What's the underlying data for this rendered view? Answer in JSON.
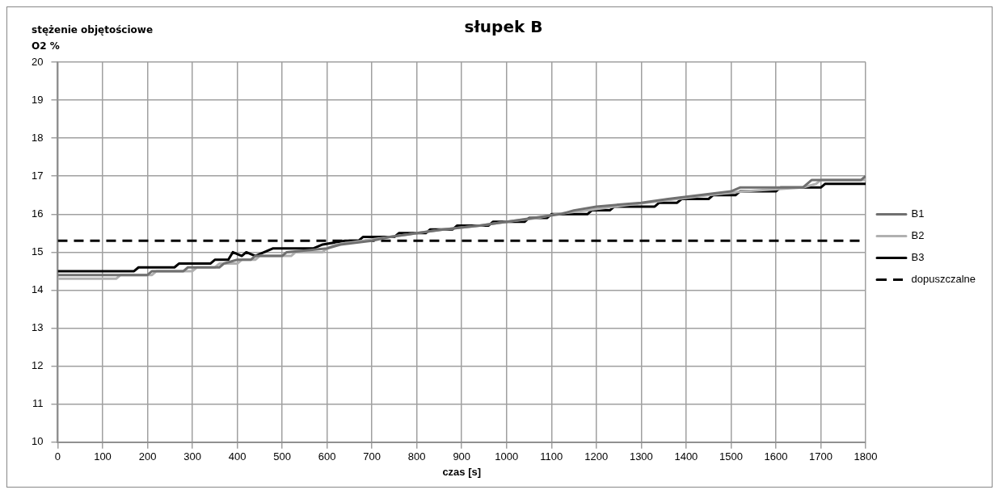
{
  "chart_data": {
    "type": "line",
    "title": "słupek B",
    "ylabel": "stężenie objętościowe O2 %",
    "xlabel": "czas [s]",
    "xlim": [
      0,
      1800
    ],
    "xticks": [
      0,
      100,
      200,
      300,
      400,
      500,
      600,
      700,
      800,
      900,
      1000,
      1100,
      1200,
      1300,
      1400,
      1500,
      1600,
      1700,
      1800
    ],
    "ylim": [
      10,
      20
    ],
    "yticks": [
      10,
      11,
      12,
      13,
      14,
      15,
      16,
      17,
      18,
      19,
      20
    ],
    "grid": true,
    "legend": "right",
    "marker": "none",
    "series": [
      {
        "name": "B1",
        "color": "#707070",
        "x": [
          0,
          200,
          210,
          280,
          290,
          360,
          370,
          400,
          430,
          440,
          500,
          510,
          600,
          630,
          700,
          740,
          800,
          860,
          940,
          1000,
          1060,
          1120,
          1150,
          1200,
          1300,
          1360,
          1430,
          1500,
          1520,
          1660,
          1680,
          1790,
          1800
        ],
        "values": [
          14.4,
          14.4,
          14.5,
          14.5,
          14.6,
          14.6,
          14.7,
          14.8,
          14.8,
          14.9,
          14.9,
          15.0,
          15.1,
          15.2,
          15.3,
          15.4,
          15.5,
          15.6,
          15.7,
          15.8,
          15.9,
          16.0,
          16.1,
          16.2,
          16.3,
          16.4,
          16.5,
          16.6,
          16.7,
          16.7,
          16.9,
          16.9,
          17.0
        ]
      },
      {
        "name": "B2",
        "color": "#b0b0b0",
        "x": [
          0,
          130,
          140,
          210,
          220,
          300,
          310,
          350,
          360,
          400,
          410,
          440,
          450,
          520,
          530,
          590,
          600,
          620,
          680,
          740,
          800,
          860,
          940,
          1000,
          1070,
          1110,
          1180,
          1240,
          1310,
          1380,
          1450,
          1530,
          1660,
          1690,
          1700,
          1800
        ],
        "values": [
          14.3,
          14.3,
          14.4,
          14.4,
          14.5,
          14.5,
          14.6,
          14.6,
          14.7,
          14.7,
          14.8,
          14.8,
          14.9,
          14.9,
          15.0,
          15.0,
          15.1,
          15.2,
          15.3,
          15.4,
          15.5,
          15.6,
          15.7,
          15.8,
          15.9,
          16.0,
          16.1,
          16.2,
          16.3,
          16.4,
          16.5,
          16.6,
          16.7,
          16.8,
          16.9,
          16.9
        ]
      },
      {
        "name": "B3",
        "color": "#000000",
        "x": [
          0,
          170,
          180,
          260,
          270,
          340,
          350,
          380,
          390,
          410,
          420,
          440,
          460,
          480,
          570,
          590,
          640,
          670,
          680,
          750,
          760,
          820,
          830,
          880,
          890,
          960,
          970,
          1040,
          1050,
          1090,
          1100,
          1180,
          1190,
          1230,
          1240,
          1330,
          1340,
          1380,
          1390,
          1450,
          1460,
          1510,
          1520,
          1600,
          1610,
          1700,
          1710,
          1800
        ],
        "values": [
          14.5,
          14.5,
          14.6,
          14.6,
          14.7,
          14.7,
          14.8,
          14.8,
          15.0,
          14.9,
          15.0,
          14.9,
          15.0,
          15.1,
          15.1,
          15.2,
          15.3,
          15.3,
          15.4,
          15.4,
          15.5,
          15.5,
          15.6,
          15.6,
          15.7,
          15.7,
          15.8,
          15.8,
          15.9,
          15.9,
          16.0,
          16.0,
          16.1,
          16.1,
          16.2,
          16.2,
          16.3,
          16.3,
          16.4,
          16.4,
          16.5,
          16.5,
          16.6,
          16.6,
          16.7,
          16.7,
          16.8,
          16.8
        ]
      },
      {
        "name": "dopuszczalne",
        "color": "#000000",
        "line_style": "dashed",
        "x": [
          0,
          1800
        ],
        "values": [
          15.3,
          15.3
        ]
      }
    ]
  }
}
